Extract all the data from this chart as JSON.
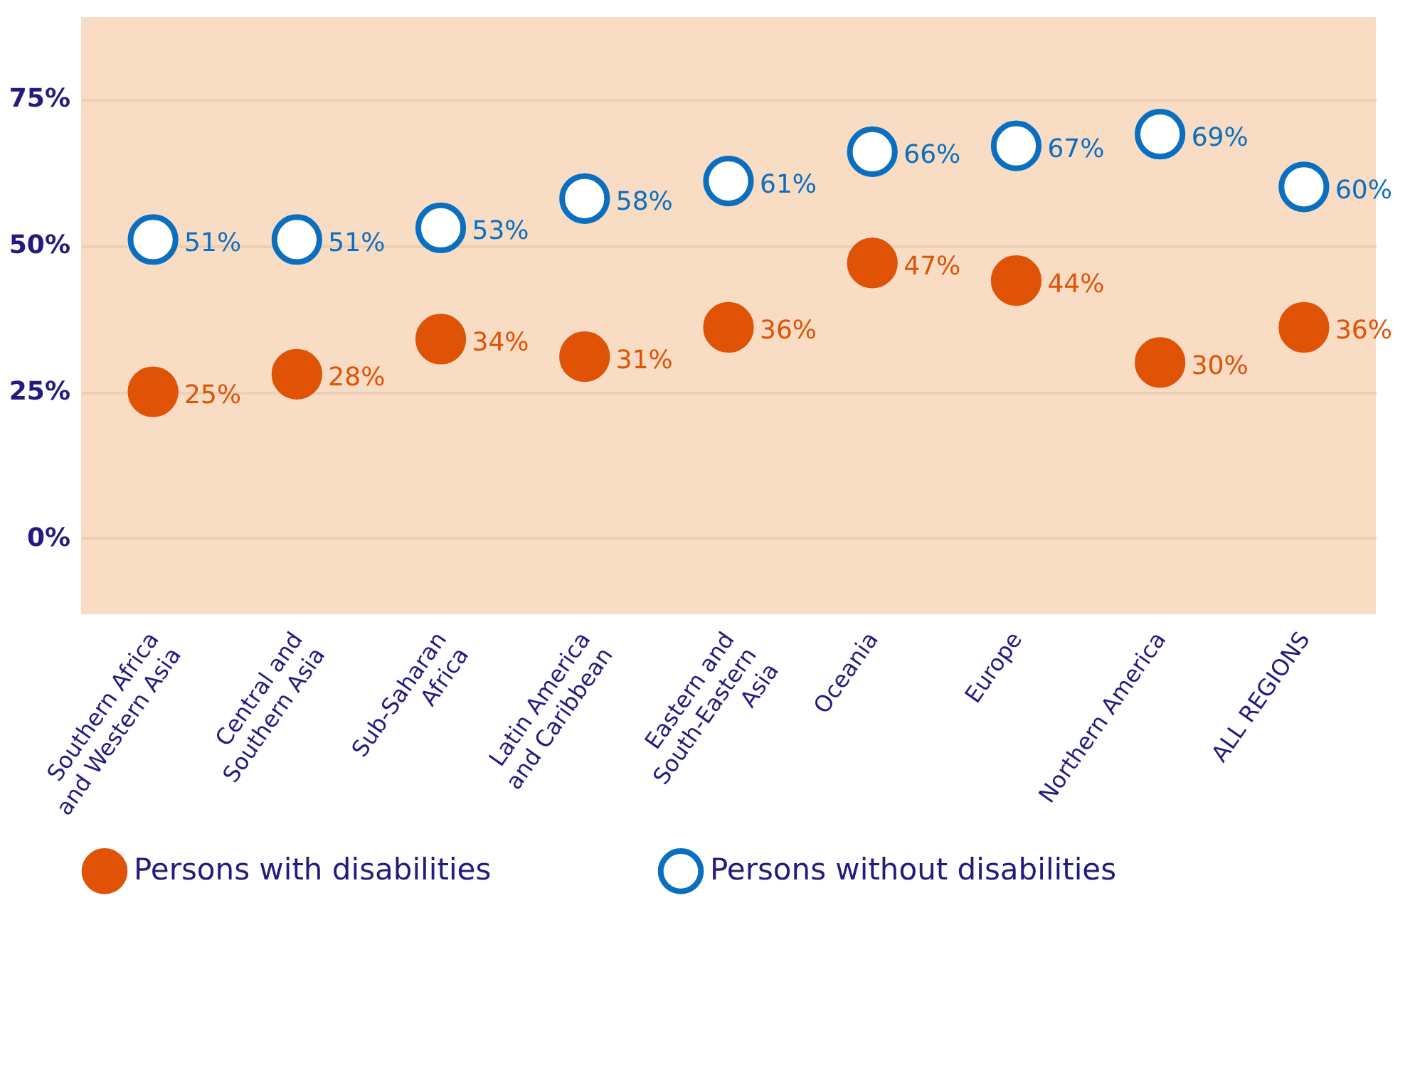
{
  "chart_data": {
    "type": "scatter",
    "categories": [
      "Southern Africa and Western Asia",
      "Central and Southern Asia",
      "Sub-Saharan Africa",
      "Latin America and Caribbean",
      "Eastern and South-Eastern Asia",
      "Oceania",
      "Europe",
      "Northern America",
      "ALL REGIONS"
    ],
    "series": [
      {
        "name": "Persons with disabilities",
        "color": "#e05206",
        "values": [
          25,
          28,
          34,
          31,
          36,
          47,
          44,
          30,
          36
        ],
        "value_labels": [
          "25%",
          "28%",
          "34%",
          "31%",
          "36%",
          "47%",
          "44%",
          "30%",
          "36%"
        ]
      },
      {
        "name": "Persons without disabilities",
        "color": "#0b6fc0",
        "values": [
          51,
          51,
          53,
          58,
          61,
          66,
          67,
          69,
          60
        ],
        "value_labels": [
          "51%",
          "51%",
          "53%",
          "58%",
          "61%",
          "66%",
          "67%",
          "69%",
          "60%"
        ]
      }
    ],
    "ylim": [
      -13,
      89
    ],
    "yticks": [
      {
        "value": 0,
        "label": "0%"
      },
      {
        "value": 25,
        "label": "25%"
      },
      {
        "value": 50,
        "label": "50%"
      },
      {
        "value": 75,
        "label": "75%"
      }
    ],
    "grid": "y",
    "legend": "bottom",
    "marker": "circle"
  }
}
